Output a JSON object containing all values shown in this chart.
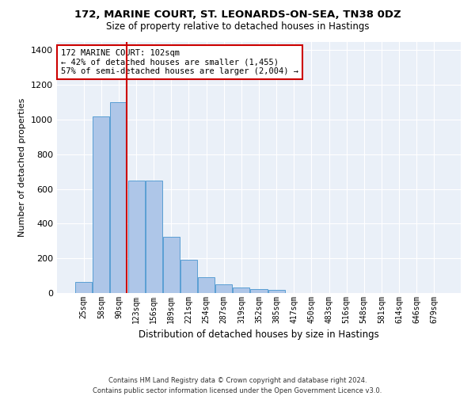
{
  "title_line1": "172, MARINE COURT, ST. LEONARDS-ON-SEA, TN38 0DZ",
  "title_line2": "Size of property relative to detached houses in Hastings",
  "xlabel": "Distribution of detached houses by size in Hastings",
  "ylabel": "Number of detached properties",
  "bar_color": "#aec6e8",
  "bar_edge_color": "#5a9fd4",
  "background_color": "#eaf0f8",
  "grid_color": "#ffffff",
  "categories": [
    "25sqm",
    "58sqm",
    "90sqm",
    "123sqm",
    "156sqm",
    "189sqm",
    "221sqm",
    "254sqm",
    "287sqm",
    "319sqm",
    "352sqm",
    "385sqm",
    "417sqm",
    "450sqm",
    "483sqm",
    "516sqm",
    "548sqm",
    "581sqm",
    "614sqm",
    "646sqm",
    "679sqm"
  ],
  "bar_values": [
    62,
    1020,
    1100,
    650,
    650,
    325,
    190,
    90,
    48,
    30,
    25,
    18,
    0,
    0,
    0,
    0,
    0,
    0,
    0,
    0,
    0
  ],
  "ylim": [
    0,
    1450
  ],
  "yticks": [
    0,
    200,
    400,
    600,
    800,
    1000,
    1200,
    1400
  ],
  "property_line_x": 2.475,
  "annotation_line1": "172 MARINE COURT: 102sqm",
  "annotation_line2": "← 42% of detached houses are smaller (1,455)",
  "annotation_line3": "57% of semi-detached houses are larger (2,004) →",
  "footer_line1": "Contains HM Land Registry data © Crown copyright and database right 2024.",
  "footer_line2": "Contains public sector information licensed under the Open Government Licence v3.0.",
  "annotation_box_color": "#cc0000",
  "red_line_color": "#cc0000"
}
